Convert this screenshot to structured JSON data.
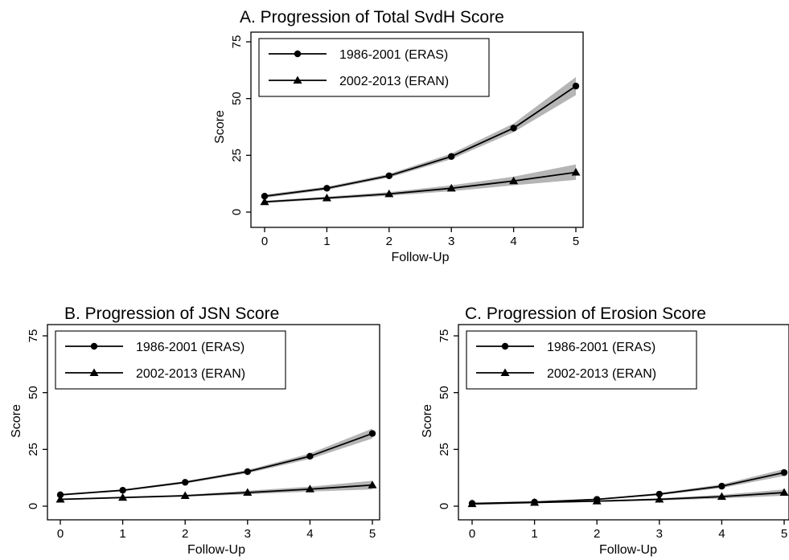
{
  "chart_data": [
    {
      "type": "line",
      "title": "A. Progression of Total SvdH Score",
      "xlabel": "Follow-Up",
      "ylabel": "Score",
      "x": [
        0,
        1,
        2,
        3,
        4,
        5
      ],
      "xlim": [
        0,
        5
      ],
      "ylim": [
        0,
        75
      ],
      "yticks": [
        0,
        25,
        50,
        75
      ],
      "grid": false,
      "legend_position": "top-left",
      "series": [
        {
          "name": "1986-2001 (ERAS)",
          "marker": "circle",
          "values": [
            7,
            10.5,
            16,
            24.5,
            37,
            55.5
          ],
          "ci_low": [
            6.3,
            9.8,
            15.2,
            23.3,
            35.2,
            51.5
          ],
          "ci_high": [
            7.7,
            11.2,
            16.8,
            25.8,
            39,
            59.5
          ]
        },
        {
          "name": "2002-2013 (ERAN)",
          "marker": "triangle",
          "values": [
            4.5,
            6.2,
            8,
            10.5,
            13.7,
            17.5
          ],
          "ci_low": [
            4,
            5.6,
            7.2,
            9.2,
            11.8,
            14.2
          ],
          "ci_high": [
            5,
            6.8,
            8.8,
            11.8,
            15.6,
            21
          ]
        }
      ]
    },
    {
      "type": "line",
      "title": "B. Progression of JSN Score",
      "xlabel": "Follow-Up",
      "ylabel": "Score",
      "x": [
        0,
        1,
        2,
        3,
        4,
        5
      ],
      "xlim": [
        0,
        5
      ],
      "ylim": [
        0,
        75
      ],
      "yticks": [
        0,
        25,
        50,
        75
      ],
      "grid": false,
      "legend_position": "top-left",
      "series": [
        {
          "name": "1986-2001 (ERAS)",
          "marker": "circle",
          "values": [
            5,
            7,
            10.5,
            15.2,
            22,
            32
          ],
          "ci_low": [
            4.6,
            6.6,
            10,
            14.5,
            20.8,
            29.8
          ],
          "ci_high": [
            5.4,
            7.4,
            11,
            15.9,
            23.2,
            34.2
          ]
        },
        {
          "name": "2002-2013 (ERAN)",
          "marker": "triangle",
          "values": [
            3,
            3.8,
            4.6,
            6,
            7.5,
            9.3
          ],
          "ci_low": [
            2.7,
            3.4,
            4.2,
            5.2,
            6.4,
            7.4
          ],
          "ci_high": [
            3.3,
            4.2,
            5,
            6.8,
            8.6,
            11.2
          ]
        }
      ]
    },
    {
      "type": "line",
      "title": "C. Progression of Erosion Score",
      "xlabel": "Follow-Up",
      "ylabel": "Score",
      "x": [
        0,
        1,
        2,
        3,
        4,
        5
      ],
      "xlim": [
        0,
        5
      ],
      "ylim": [
        0,
        75
      ],
      "yticks": [
        0,
        25,
        50,
        75
      ],
      "grid": false,
      "legend_position": "top-left",
      "series": [
        {
          "name": "1986-2001 (ERAS)",
          "marker": "circle",
          "values": [
            1.2,
            1.8,
            3,
            5.3,
            8.8,
            14.8
          ],
          "ci_low": [
            1,
            1.6,
            2.7,
            4.8,
            8,
            13.3
          ],
          "ci_high": [
            1.4,
            2,
            3.3,
            5.8,
            9.6,
            16.3
          ]
        },
        {
          "name": "2002-2013 (ERAN)",
          "marker": "triangle",
          "values": [
            1,
            1.6,
            2.2,
            3,
            4.2,
            6
          ],
          "ci_low": [
            0.8,
            1.4,
            1.9,
            2.5,
            3.4,
            4.6
          ],
          "ci_high": [
            1.2,
            1.8,
            2.5,
            3.5,
            5,
            7.4
          ]
        }
      ]
    }
  ]
}
